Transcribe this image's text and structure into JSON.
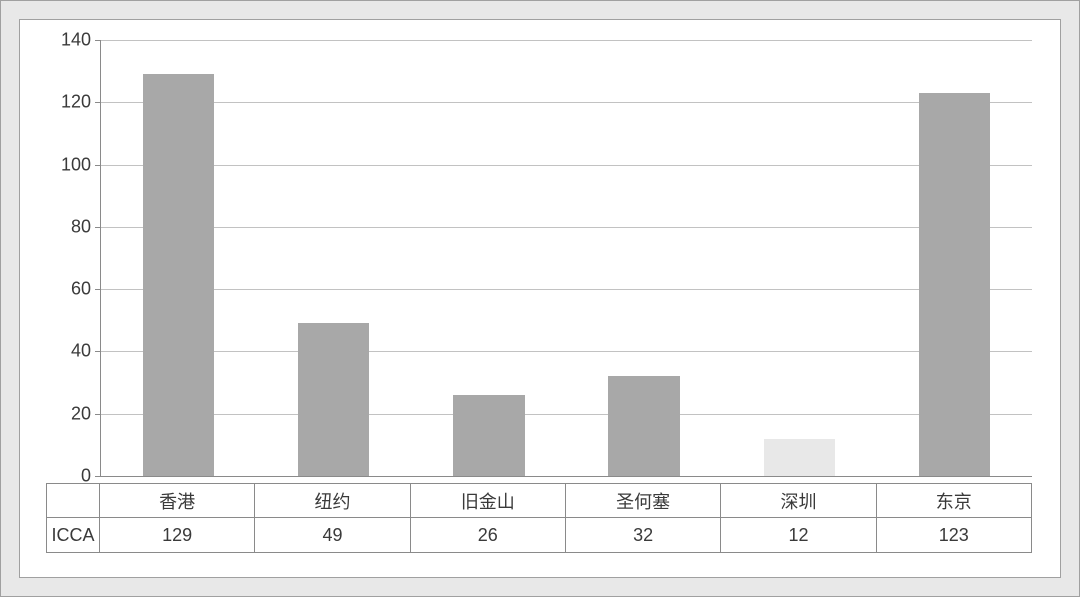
{
  "chart": {
    "type": "bar",
    "categories": [
      "香港",
      "纽约",
      "旧金山",
      "圣何塞",
      "深圳",
      "东京"
    ],
    "series_label": "ICCA",
    "values": [
      129,
      49,
      26,
      32,
      12,
      123
    ],
    "bar_colors": [
      "#a8a8a8",
      "#a8a8a8",
      "#a8a8a8",
      "#a8a8a8",
      "#e8e8e8",
      "#a8a8a8"
    ],
    "ylim": [
      0,
      140
    ],
    "ytick_step": 20,
    "yticks": [
      0,
      20,
      40,
      60,
      80,
      100,
      120,
      140
    ],
    "background_color": "#ffffff",
    "outer_background": "#e8e8e8",
    "grid_color": "#c2c2c2",
    "axis_color": "#8a8a8a",
    "bar_width_ratio": 0.46,
    "label_fontsize": 18,
    "text_color": "#3a3a3a"
  }
}
